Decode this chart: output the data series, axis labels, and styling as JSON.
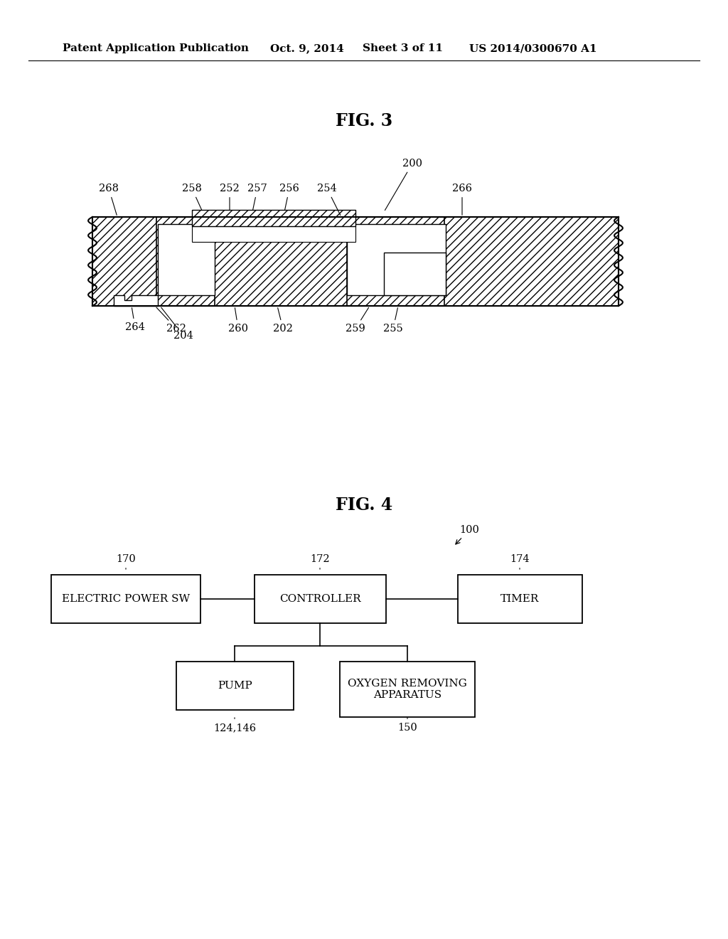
{
  "bg_color": "#ffffff",
  "header_text": "Patent Application Publication",
  "header_date": "Oct. 9, 2014",
  "header_sheet": "Sheet 3 of 11",
  "header_patent": "US 2014/0300670 A1",
  "fig3_title": "FIG. 3",
  "fig4_title": "FIG. 4"
}
